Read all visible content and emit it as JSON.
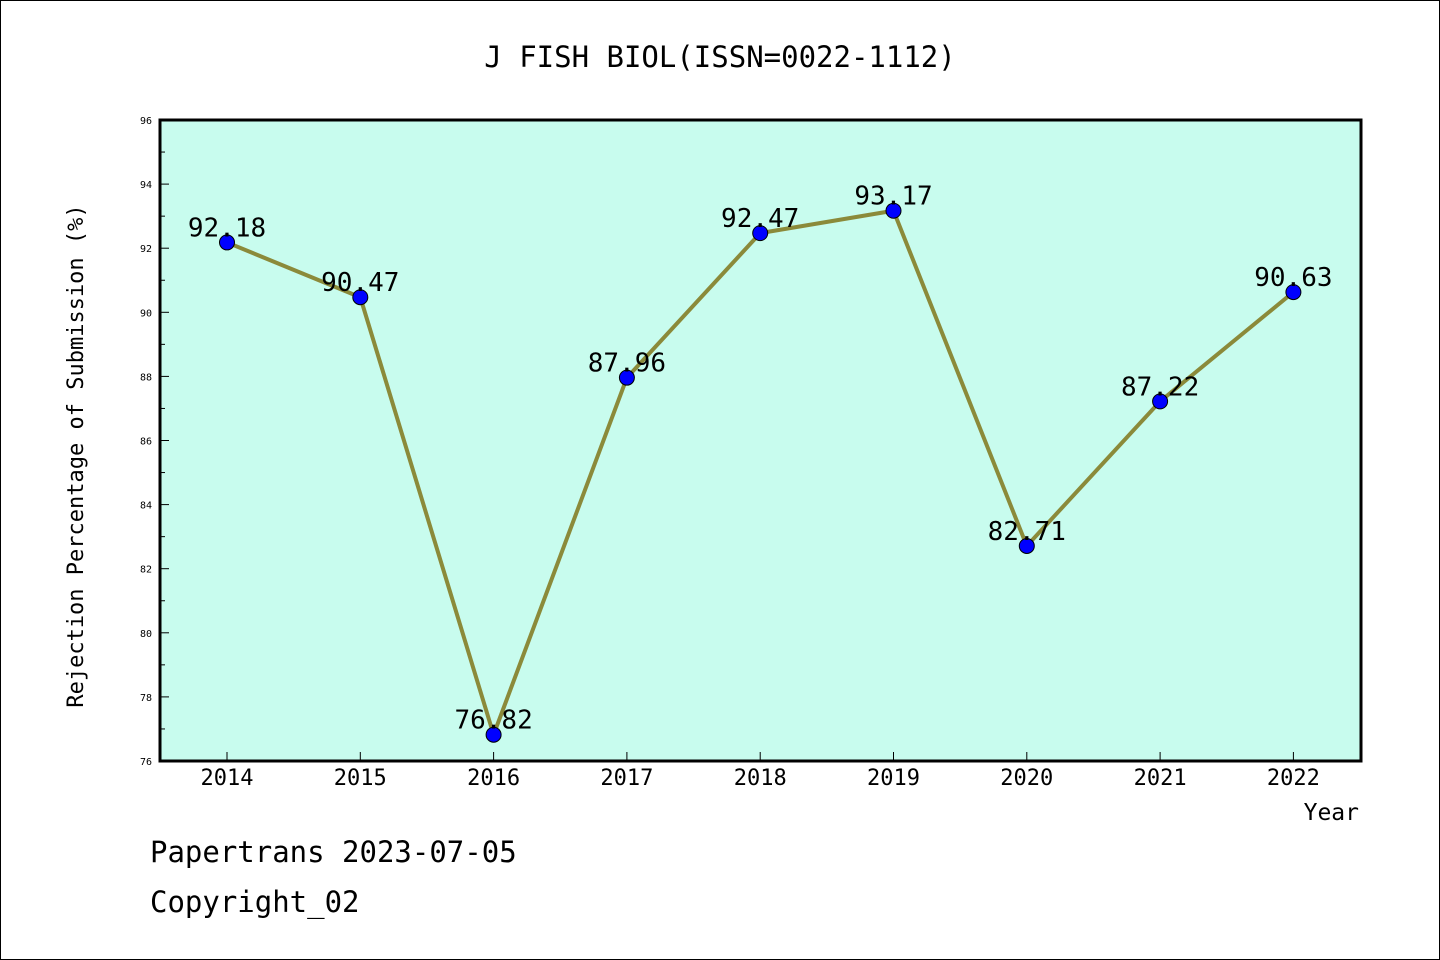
{
  "chart_data": {
    "type": "line",
    "title": "J FISH BIOL(ISSN=0022-1112)",
    "xlabel": "Year",
    "ylabel": "Rejection Percentage of Submission (%)",
    "categories": [
      "2014",
      "2015",
      "2016",
      "2017",
      "2018",
      "2019",
      "2020",
      "2021",
      "2022"
    ],
    "series": [
      {
        "values": [
          92.18,
          90.47,
          76.82,
          87.96,
          92.47,
          93.17,
          82.71,
          87.22,
          90.63
        ],
        "data_labels": [
          "92.18",
          "90.47",
          "76.82",
          "87.96",
          "92.47",
          "93.17",
          "82.71",
          "87.22",
          "90.63"
        ]
      }
    ],
    "ylim": [
      76,
      96
    ],
    "yticks": [
      "76",
      "78",
      "80",
      "82",
      "84",
      "86",
      "88",
      "90",
      "92",
      "94",
      "96"
    ],
    "grid": false,
    "legend": "none",
    "colors": {
      "plot_background": "#c8fcee",
      "line": "#8b8a3a",
      "marker": "#0000ff"
    }
  },
  "footer": {
    "source": "Papertrans 2023-07-05",
    "copyright": "Copyright_02"
  }
}
